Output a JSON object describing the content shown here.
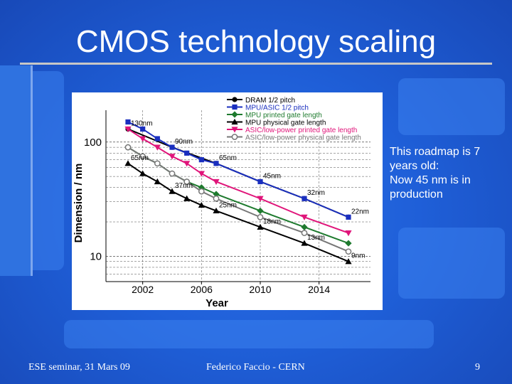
{
  "slide": {
    "title": "CMOS technology scaling",
    "note_lines": [
      "This roadmap is 7",
      "years old:",
      "Now 45 nm is in",
      "production"
    ],
    "footer_left": "ESE seminar, 31 Mars 09",
    "footer_center": "Federico Faccio - CERN",
    "page_number": "9",
    "colors": {
      "background": "#1f5fd8",
      "text": "#ffffff"
    }
  },
  "chart_data": {
    "type": "line",
    "xlabel": "Year",
    "ylabel": "Dimension / nm",
    "yscale": "log",
    "xlim": [
      1999.5,
      2017.5
    ],
    "ylim": [
      6,
      190
    ],
    "x_ticks": [
      "2002",
      "2006",
      "2010",
      "2014"
    ],
    "y_ticks": [
      "100",
      "10"
    ],
    "series": [
      {
        "name": "DRAM 1/2 pitch",
        "color": "#000000",
        "marker": "circle",
        "x": [
          2001,
          2004,
          2007,
          2010,
          2013,
          2016
        ],
        "values": [
          130,
          90,
          65,
          45,
          32,
          22
        ]
      },
      {
        "name": "MPU/ASIC 1/2 pitch",
        "color": "#1a2fbf",
        "marker": "square",
        "x": [
          2001,
          2002,
          2003,
          2004,
          2005,
          2006,
          2007,
          2010,
          2013,
          2016
        ],
        "values": [
          150,
          130,
          107,
          90,
          80,
          70,
          65,
          45,
          32,
          22
        ]
      },
      {
        "name": "MPU printed gate length",
        "color": "#1e7a2e",
        "marker": "diamond",
        "x": [
          2001,
          2002,
          2003,
          2004,
          2005,
          2006,
          2007,
          2010,
          2013,
          2016
        ],
        "values": [
          90,
          75,
          65,
          53,
          45,
          40,
          35,
          25,
          18,
          13
        ]
      },
      {
        "name": "MPU physical gate length",
        "color": "#000000",
        "marker": "triangle",
        "x": [
          2001,
          2002,
          2003,
          2004,
          2005,
          2006,
          2007,
          2010,
          2013,
          2016
        ],
        "values": [
          65,
          53,
          45,
          37,
          32,
          28,
          25,
          18,
          13,
          9
        ]
      },
      {
        "name": "ASIC/low-power printed gate length",
        "color": "#e0157a",
        "marker": "triangle-down",
        "x": [
          2001,
          2002,
          2003,
          2004,
          2005,
          2006,
          2007,
          2010,
          2013,
          2016
        ],
        "values": [
          130,
          107,
          90,
          75,
          65,
          53,
          45,
          32,
          22,
          16
        ]
      },
      {
        "name": "ASIC/low-power physical gate length",
        "color": "#777777",
        "marker": "open-circle",
        "x": [
          2001,
          2002,
          2003,
          2004,
          2005,
          2006,
          2007,
          2010,
          2013,
          2016
        ],
        "values": [
          90,
          75,
          65,
          53,
          45,
          37,
          32,
          22,
          16,
          11
        ]
      }
    ],
    "annotations": [
      {
        "text": "130nm",
        "x": 2001,
        "y": 130
      },
      {
        "text": "90nm",
        "x": 2004,
        "y": 90
      },
      {
        "text": "65nm",
        "x": 2001,
        "y": 65
      },
      {
        "text": "65nm",
        "x": 2007,
        "y": 65
      },
      {
        "text": "45nm",
        "x": 2010,
        "y": 45
      },
      {
        "text": "37nm",
        "x": 2004,
        "y": 37
      },
      {
        "text": "32nm",
        "x": 2013,
        "y": 32
      },
      {
        "text": "25nm",
        "x": 2007,
        "y": 25
      },
      {
        "text": "22nm",
        "x": 2016,
        "y": 22
      },
      {
        "text": "18nm",
        "x": 2010,
        "y": 18
      },
      {
        "text": "13nm",
        "x": 2013,
        "y": 13
      },
      {
        "text": "9nm",
        "x": 2016,
        "y": 9
      }
    ],
    "legend": "top-right"
  }
}
